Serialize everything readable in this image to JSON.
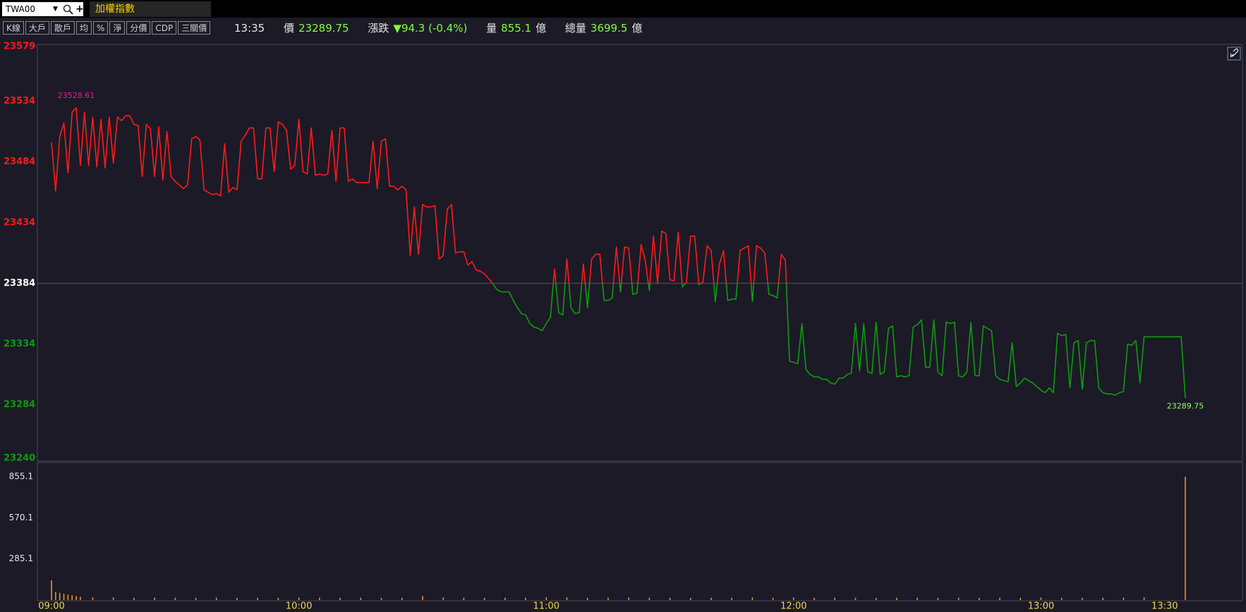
{
  "header": {
    "symbol": "TWA00",
    "name": "加權指數",
    "buttons": [
      "K線",
      "大戶",
      "散戶",
      "均",
      "%",
      "淨",
      "分價",
      "CDP",
      "三關價"
    ],
    "quote": {
      "time": "13:35",
      "price_label": "價",
      "price": "23289.75",
      "change_label": "漲跌",
      "change": "▼94.3 (-0.4%)",
      "volume_label": "量",
      "volume": "855.1",
      "volume_unit": "億",
      "total_label": "總量",
      "total": "3699.5",
      "total_unit": "億"
    }
  },
  "chart_data": [
    {
      "type": "line",
      "up_color": "#ff1a1a",
      "down_color": "#0f9a0f",
      "reference_color": "#ffffff",
      "reference": 23384,
      "max_label_color": "#e0208f",
      "last_label_color": "#8cff6a",
      "annotate": [
        "max",
        "last"
      ],
      "xlim": [
        "09:00",
        "13:35"
      ],
      "ylim": [
        23240,
        23579
      ],
      "yticks": [
        23579,
        23534,
        23484,
        23434,
        23384,
        23334,
        23284,
        23240
      ],
      "x": [
        "09:00",
        "09:01",
        "09:02",
        "09:03",
        "09:04",
        "09:05",
        "09:06",
        "09:07",
        "09:08",
        "09:09",
        "09:10",
        "09:11",
        "09:12",
        "09:13",
        "09:14",
        "09:15",
        "09:16",
        "09:17",
        "09:18",
        "09:19",
        "09:20",
        "09:21",
        "09:22",
        "09:23",
        "09:24",
        "09:25",
        "09:26",
        "09:27",
        "09:28",
        "09:29",
        "09:30",
        "09:31",
        "09:32",
        "09:33",
        "09:34",
        "09:35",
        "09:36",
        "09:37",
        "09:38",
        "09:39",
        "09:40",
        "09:41",
        "09:42",
        "09:43",
        "09:44",
        "09:45",
        "09:46",
        "09:47",
        "09:48",
        "09:49",
        "09:50",
        "09:51",
        "09:52",
        "09:53",
        "09:54",
        "09:55",
        "09:56",
        "09:57",
        "09:58",
        "09:59",
        "10:00",
        "10:01",
        "10:02",
        "10:03",
        "10:04",
        "10:05",
        "10:06",
        "10:07",
        "10:08",
        "10:09",
        "10:10",
        "10:11",
        "10:12",
        "10:13",
        "10:14",
        "10:15",
        "10:16",
        "10:17",
        "10:18",
        "10:19",
        "10:20",
        "10:21",
        "10:22",
        "10:23",
        "10:24",
        "10:25",
        "10:26",
        "10:27",
        "10:28",
        "10:29",
        "10:30",
        "10:31",
        "10:32",
        "10:33",
        "10:34",
        "10:35",
        "10:36",
        "10:37",
        "10:38",
        "10:39",
        "10:40",
        "10:41",
        "10:42",
        "10:43",
        "10:44",
        "10:45",
        "10:46",
        "10:47",
        "10:48",
        "10:49",
        "10:50",
        "10:51",
        "10:52",
        "10:53",
        "10:54",
        "10:55",
        "10:56",
        "10:57",
        "10:58",
        "10:59",
        "11:00",
        "11:01",
        "11:02",
        "11:03",
        "11:04",
        "11:05",
        "11:06",
        "11:07",
        "11:08",
        "11:09",
        "11:10",
        "11:11",
        "11:12",
        "11:13",
        "11:14",
        "11:15",
        "11:16",
        "11:17",
        "11:18",
        "11:19",
        "11:20",
        "11:21",
        "11:22",
        "11:23",
        "11:24",
        "11:25",
        "11:26",
        "11:27",
        "11:28",
        "11:29",
        "11:30",
        "11:31",
        "11:32",
        "11:33",
        "11:34",
        "11:35",
        "11:36",
        "11:37",
        "11:38",
        "11:39",
        "11:40",
        "11:41",
        "11:42",
        "11:43",
        "11:44",
        "11:45",
        "11:46",
        "11:47",
        "11:48",
        "11:49",
        "11:50",
        "11:51",
        "11:52",
        "11:53",
        "11:54",
        "11:55",
        "11:56",
        "11:57",
        "11:58",
        "11:59",
        "12:00",
        "12:01",
        "12:02",
        "12:03",
        "12:04",
        "12:05",
        "12:06",
        "12:07",
        "12:08",
        "12:09",
        "12:10",
        "12:11",
        "12:12",
        "12:13",
        "12:14",
        "12:15",
        "12:16",
        "12:17",
        "12:18",
        "12:19",
        "12:20",
        "12:21",
        "12:22",
        "12:23",
        "12:24",
        "12:25",
        "12:26",
        "12:27",
        "12:28",
        "12:29",
        "12:30",
        "12:31",
        "12:32",
        "12:33",
        "12:34",
        "12:35",
        "12:36",
        "12:37",
        "12:38",
        "12:39",
        "12:40",
        "12:41",
        "12:42",
        "12:43",
        "12:44",
        "12:45",
        "12:46",
        "12:47",
        "12:48",
        "12:49",
        "12:50",
        "12:51",
        "12:52",
        "12:53",
        "12:54",
        "12:55",
        "12:56",
        "12:57",
        "12:58",
        "12:59",
        "13:00",
        "13:01",
        "13:02",
        "13:03",
        "13:04",
        "13:05",
        "13:06",
        "13:07",
        "13:08",
        "13:09",
        "13:10",
        "13:11",
        "13:12",
        "13:13",
        "13:14",
        "13:15",
        "13:16",
        "13:17",
        "13:18",
        "13:19",
        "13:20",
        "13:21",
        "13:22",
        "13:23",
        "13:24",
        "13:25",
        "13:26",
        "13:34",
        "13:35"
      ],
      "values": [
        23500,
        23460,
        23505,
        23516,
        23475,
        23525,
        23528.61,
        23481,
        23525,
        23481,
        23521,
        23480,
        23519,
        23479,
        23521,
        23483,
        23521,
        23518,
        23522,
        23522,
        23515,
        23514,
        23472,
        23515,
        23511,
        23472,
        23513,
        23469,
        23509,
        23472,
        23468,
        23465,
        23462,
        23465,
        23503,
        23505,
        23502,
        23461,
        23459,
        23457,
        23458,
        23456,
        23499,
        23459,
        23463,
        23461,
        23501,
        23506,
        23512,
        23512,
        23470,
        23470,
        23512,
        23512,
        23476,
        23517,
        23515,
        23510,
        23478,
        23481,
        23519,
        23476,
        23474,
        23512,
        23473,
        23474,
        23473,
        23474,
        23510,
        23468,
        23512,
        23512,
        23468,
        23470,
        23467,
        23467,
        23467,
        23467,
        23501,
        23462,
        23501,
        23503,
        23464,
        23464,
        23461,
        23464,
        23461,
        23407,
        23447,
        23408,
        23449,
        23447,
        23447,
        23448,
        23404,
        23407,
        23445,
        23449,
        23409,
        23410,
        23410,
        23399,
        23402,
        23395,
        23394,
        23392,
        23388,
        23384,
        23379,
        23377,
        23377,
        23377,
        23370,
        23364,
        23359,
        23358,
        23351,
        23348,
        23347,
        23345,
        23351,
        23356,
        23396,
        23360,
        23358,
        23404,
        23364,
        23359,
        23360,
        23400,
        23364,
        23404,
        23408,
        23408,
        23370,
        23370,
        23372,
        23414,
        23377,
        23414,
        23413,
        23375,
        23376,
        23416,
        23403,
        23378,
        23423,
        23384,
        23427,
        23425,
        23387,
        23386,
        23426,
        23381,
        23385,
        23423,
        23423,
        23383,
        23385,
        23415,
        23411,
        23369,
        23400,
        23411,
        23370,
        23371,
        23371,
        23411,
        23413,
        23415,
        23369,
        23415,
        23413,
        23409,
        23375,
        23374,
        23372,
        23408,
        23403,
        23320,
        23319,
        23318,
        23351,
        23313,
        23309,
        23307,
        23307,
        23305,
        23305,
        23302,
        23301,
        23306,
        23306,
        23309,
        23310,
        23351,
        23312,
        23351,
        23311,
        23310,
        23352,
        23309,
        23311,
        23347,
        23349,
        23307,
        23308,
        23307,
        23308,
        23348,
        23350,
        23354,
        23315,
        23315,
        23354,
        23311,
        23308,
        23352,
        23351,
        23352,
        23308,
        23307,
        23311,
        23352,
        23308,
        23308,
        23349,
        23347,
        23345,
        23308,
        23305,
        23304,
        23303,
        23335,
        23299,
        23302,
        23306,
        23304,
        23302,
        23299,
        23296,
        23294,
        23298,
        23294,
        23343,
        23341,
        23342,
        23298,
        23335,
        23337,
        23297,
        23335,
        23337,
        23337,
        23298,
        23294,
        23293,
        23293,
        23292,
        23294,
        23295,
        23334,
        23333,
        23337,
        23302,
        23340,
        23340,
        23340,
        23289.75
      ]
    },
    {
      "type": "bar",
      "color": "#ff8c1a",
      "xlim": [
        "09:00",
        "13:35"
      ],
      "ylim": [
        0,
        954
      ],
      "yticks": [
        285.1,
        570.1,
        855.1
      ],
      "xticks": [
        "09:00",
        "10:00",
        "11:00",
        "12:00",
        "13:00",
        "13:30"
      ],
      "x": [
        "09:00",
        "09:01",
        "09:02",
        "09:03",
        "09:04",
        "09:05",
        "09:06",
        "09:07",
        "09:10",
        "09:15",
        "09:20",
        "09:25",
        "09:30",
        "09:35",
        "09:40",
        "09:45",
        "09:50",
        "09:55",
        "10:00",
        "10:05",
        "10:10",
        "10:15",
        "10:20",
        "10:25",
        "10:30",
        "10:35",
        "10:40",
        "10:45",
        "10:50",
        "10:55",
        "11:00",
        "11:05",
        "11:10",
        "11:15",
        "11:20",
        "11:25",
        "11:30",
        "11:35",
        "11:40",
        "11:45",
        "11:50",
        "11:55",
        "12:00",
        "12:05",
        "12:10",
        "12:15",
        "12:20",
        "12:25",
        "12:30",
        "12:35",
        "12:40",
        "12:45",
        "12:50",
        "12:55",
        "13:00",
        "13:05",
        "13:10",
        "13:15",
        "13:20",
        "13:25",
        "13:35"
      ],
      "values": [
        137,
        55,
        49,
        44,
        38,
        33,
        27,
        22,
        18,
        17,
        16,
        17,
        16,
        16,
        16,
        15,
        16,
        16,
        17,
        16,
        16,
        16,
        15,
        16,
        27,
        17,
        16,
        16,
        16,
        16,
        19,
        18,
        16,
        16,
        17,
        16,
        16,
        15,
        16,
        16,
        17,
        16,
        17,
        16,
        16,
        16,
        15,
        16,
        16,
        16,
        16,
        15,
        16,
        16,
        17,
        16,
        16,
        16,
        17,
        18,
        855.1
      ]
    }
  ]
}
